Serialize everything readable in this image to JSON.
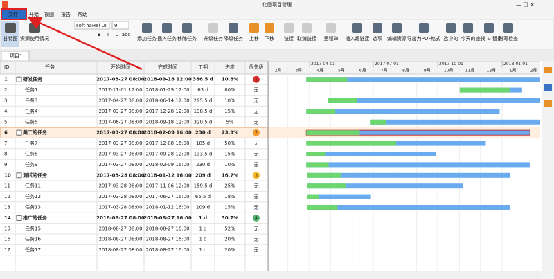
{
  "window": {
    "title": "亿图项目管理"
  },
  "menu": [
    "文件",
    "开始",
    "视图",
    "报告",
    "帮助"
  ],
  "ribbon": {
    "views": [
      "甘特图",
      "资源使用情况"
    ],
    "font": "soft YaHei UI",
    "font_size": "9",
    "format": [
      "B",
      "I",
      "U",
      "abc"
    ],
    "buttons": [
      "添加任务",
      "插入任务",
      "移除任务",
      "升级任务",
      "降级任务",
      "上移",
      "下移",
      "链接",
      "取消链接",
      "里程碑",
      "插入超链接",
      "选项",
      "编辑资源",
      "导出为PDF格式",
      "选中的",
      "今天的",
      "查找 & 替换",
      "拼写检查"
    ]
  },
  "tab": "项目1",
  "table": {
    "columns": [
      "ID",
      "任务",
      "开始时间",
      "完成时间",
      "工期",
      "进度",
      "优先级"
    ],
    "rows": [
      [
        "1",
        "研发任务",
        "2017-03-27 08:00",
        "2018-09-18 12:00",
        "386.5 d",
        "10.8%",
        "1"
      ],
      [
        "2",
        "任务1",
        "2017-11-01 12:00",
        "2018-01-29 12:00",
        "63 d",
        "80%",
        "无"
      ],
      [
        "3",
        "任务3",
        "2017-04-27 08:00",
        "2018-06-14 12:00",
        "295.5 d",
        "10%",
        "无"
      ],
      [
        "4",
        "任务4",
        "2017-03-27 08:00",
        "2017-12-28 12:00",
        "198.5 d",
        "15%",
        "无"
      ],
      [
        "5",
        "任务5",
        "2017-06-27 08:00",
        "2018-09-18 12:00",
        "320.5 d",
        "5%",
        "无"
      ],
      [
        "6",
        "美工的任务",
        "2017-03-27 08:00",
        "2018-02-09 16:00",
        "230 d",
        "23.9%",
        "2"
      ],
      [
        "7",
        "任务7",
        "2017-03-27 08:00",
        "2017-12-08 16:00",
        "185 d",
        "50%",
        "无"
      ],
      [
        "8",
        "任务8",
        "2017-03-27 08:00",
        "2017-09-28 12:00",
        "133.5 d",
        "15%",
        "无"
      ],
      [
        "9",
        "任务9",
        "2017-03-27 08:00",
        "2018-02-09 16:00",
        "230 d",
        "10%",
        "无"
      ],
      [
        "10",
        "测试的任务",
        "2017-03-28 08:00",
        "2018-01-12 16:00",
        "209 d",
        "16.7%",
        "3"
      ],
      [
        "11",
        "任务11",
        "2017-03-28 08:00",
        "2017-11-06 12:00",
        "159.5 d",
        "25%",
        "无"
      ],
      [
        "12",
        "任务12",
        "2017-03-28 08:00",
        "2017-06-27 16:00",
        "65.5 d",
        "18%",
        "无"
      ],
      [
        "13",
        "任务13",
        "2017-03-28 08:00",
        "2018-01-12 16:00",
        "209 d",
        "15%",
        "无"
      ],
      [
        "14",
        "推广的任务",
        "2018-08-27 08:00",
        "2018-08-27 16:00",
        "1 d",
        "30.7%",
        "4"
      ],
      [
        "15",
        "任务15",
        "2018-08-27 08:00",
        "2018-08-27 16:00",
        "1 d",
        "52%",
        "无"
      ],
      [
        "16",
        "任务16",
        "2018-08-27 08:00",
        "2018-08-27 16:00",
        "1 d",
        "20%",
        "无"
      ],
      [
        "17",
        "任务17",
        "2018-08-27 08:00",
        "2018-08-27 16:00",
        "1 d",
        "20%",
        "无"
      ]
    ]
  },
  "gantt": {
    "quarters": [
      "2017-04-01",
      "2017-07-01",
      "2017-10-01",
      "2018-01-01"
    ],
    "months": [
      "2月",
      "3月",
      "4月",
      "5月",
      "6月",
      "7月",
      "8月",
      "9月",
      "10月",
      "11月",
      "12月",
      "1月",
      "2月"
    ]
  }
}
